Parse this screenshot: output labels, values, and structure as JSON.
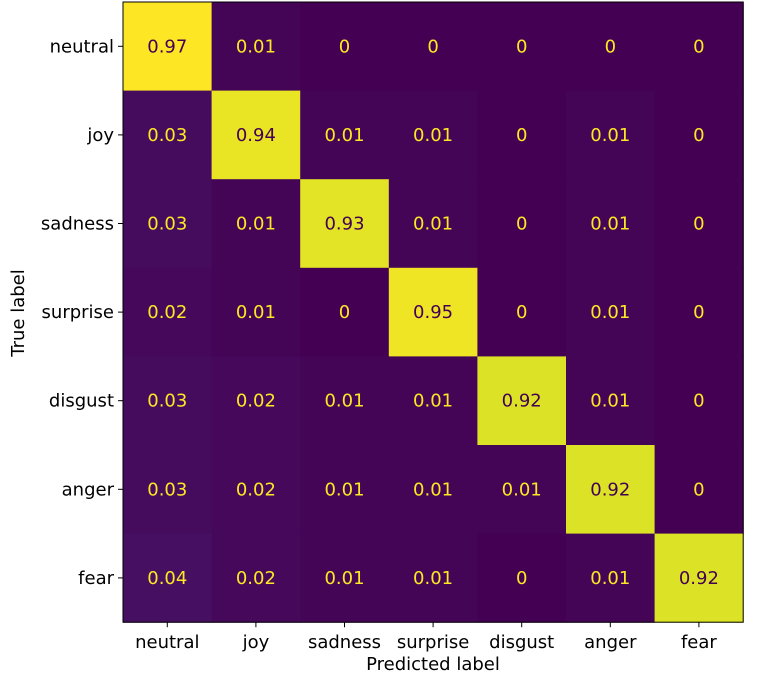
{
  "chart_data": {
    "type": "heatmap",
    "title": "",
    "xlabel": "Predicted label",
    "ylabel": "True label",
    "x_categories": [
      "neutral",
      "joy",
      "sadness",
      "surprise",
      "disgust",
      "anger",
      "fear"
    ],
    "y_categories": [
      "neutral",
      "joy",
      "sadness",
      "surprise",
      "disgust",
      "anger",
      "fear"
    ],
    "values": [
      [
        0.97,
        0.01,
        0,
        0,
        0,
        0,
        0
      ],
      [
        0.03,
        0.94,
        0.01,
        0.01,
        0,
        0.01,
        0
      ],
      [
        0.03,
        0.01,
        0.93,
        0.01,
        0,
        0.01,
        0
      ],
      [
        0.02,
        0.01,
        0,
        0.95,
        0,
        0.01,
        0
      ],
      [
        0.03,
        0.02,
        0.01,
        0.01,
        0.92,
        0.01,
        0
      ],
      [
        0.03,
        0.02,
        0.01,
        0.01,
        0.01,
        0.92,
        0
      ],
      [
        0.04,
        0.02,
        0.01,
        0.01,
        0,
        0.01,
        0.92
      ]
    ],
    "value_range": [
      0,
      0.97
    ],
    "colormap": "viridis",
    "colorbar": false,
    "grid": false
  }
}
